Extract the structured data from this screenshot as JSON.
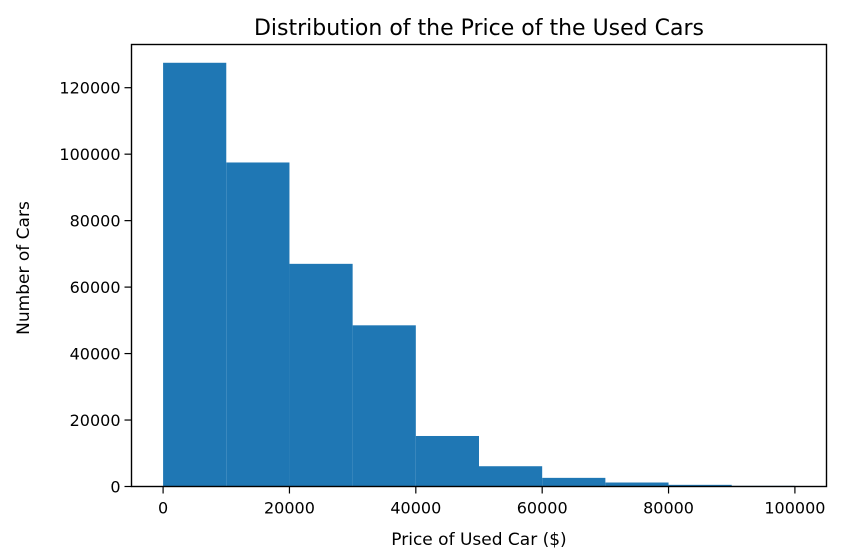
{
  "chart_data": {
    "type": "histogram",
    "title": "Distribution of the Price of the Used Cars",
    "xlabel": "Price of Used Car ($)",
    "ylabel": "Number of Cars",
    "xlim": [
      -5000,
      105000
    ],
    "ylim": [
      0,
      133000
    ],
    "x_ticks": [
      0,
      20000,
      40000,
      60000,
      80000,
      100000
    ],
    "y_ticks": [
      0,
      20000,
      40000,
      60000,
      80000,
      100000,
      120000
    ],
    "bins": [
      {
        "x0": 0,
        "x1": 10000,
        "count": 127500
      },
      {
        "x0": 10000,
        "x1": 20000,
        "count": 97500
      },
      {
        "x0": 20000,
        "x1": 30000,
        "count": 67000
      },
      {
        "x0": 30000,
        "x1": 40000,
        "count": 48500
      },
      {
        "x0": 40000,
        "x1": 50000,
        "count": 15200
      },
      {
        "x0": 50000,
        "x1": 60000,
        "count": 6100
      },
      {
        "x0": 60000,
        "x1": 70000,
        "count": 2600
      },
      {
        "x0": 70000,
        "x1": 80000,
        "count": 1200
      },
      {
        "x0": 80000,
        "x1": 90000,
        "count": 500
      },
      {
        "x0": 90000,
        "x1": 100000,
        "count": 200
      }
    ],
    "bar_color": "#1f77b4",
    "grid": false,
    "legend": false
  }
}
